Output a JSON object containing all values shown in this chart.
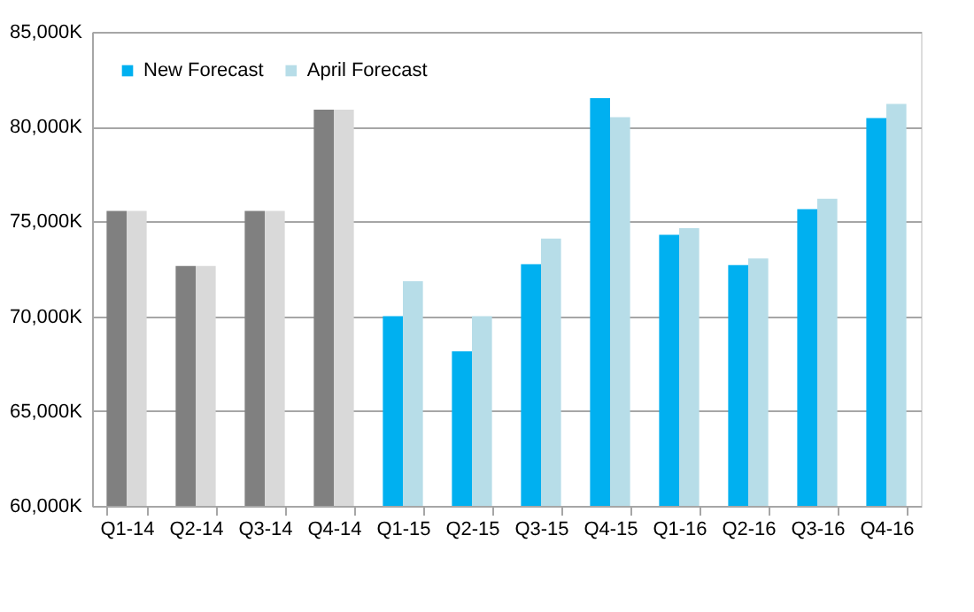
{
  "chart_data": {
    "type": "bar",
    "categories": [
      "Q1-14",
      "Q2-14",
      "Q3-14",
      "Q4-14",
      "Q1-15",
      "Q2-15",
      "Q3-15",
      "Q4-15",
      "Q1-16",
      "Q2-16",
      "Q3-16",
      "Q4-16"
    ],
    "series": [
      {
        "name": "New Forecast",
        "color": "#00b0f0",
        "colors": [
          "#808080",
          "#808080",
          "#808080",
          "#808080",
          "#00b0f0",
          "#00b0f0",
          "#00b0f0",
          "#00b0f0",
          "#00b0f0",
          "#00b0f0",
          "#00b0f0",
          "#00b0f0"
        ],
        "values": [
          75550,
          72650,
          75550,
          80900,
          70000,
          68150,
          72750,
          81500,
          74300,
          72700,
          75650,
          80450
        ]
      },
      {
        "name": "April Forecast",
        "color": "#b7dde8",
        "colors": [
          "#d9d9d9",
          "#d9d9d9",
          "#d9d9d9",
          "#d9d9d9",
          "#b7dde8",
          "#b7dde8",
          "#b7dde8",
          "#b7dde8",
          "#b7dde8",
          "#b7dde8",
          "#b7dde8",
          "#b7dde8"
        ],
        "values": [
          75550,
          72650,
          75550,
          80900,
          71850,
          70000,
          74100,
          80500,
          74650,
          73050,
          76200,
          81200
        ]
      }
    ],
    "ylim": [
      60000,
      85000
    ],
    "yticks": [
      {
        "value": 60000,
        "label": "60,000K"
      },
      {
        "value": 65000,
        "label": "65,000K"
      },
      {
        "value": 70000,
        "label": "70,000K"
      },
      {
        "value": 75000,
        "label": "75,000K"
      },
      {
        "value": 80000,
        "label": "80,000K"
      },
      {
        "value": 85000,
        "label": "85,000K"
      }
    ],
    "grid": "y",
    "legend": "top left"
  }
}
